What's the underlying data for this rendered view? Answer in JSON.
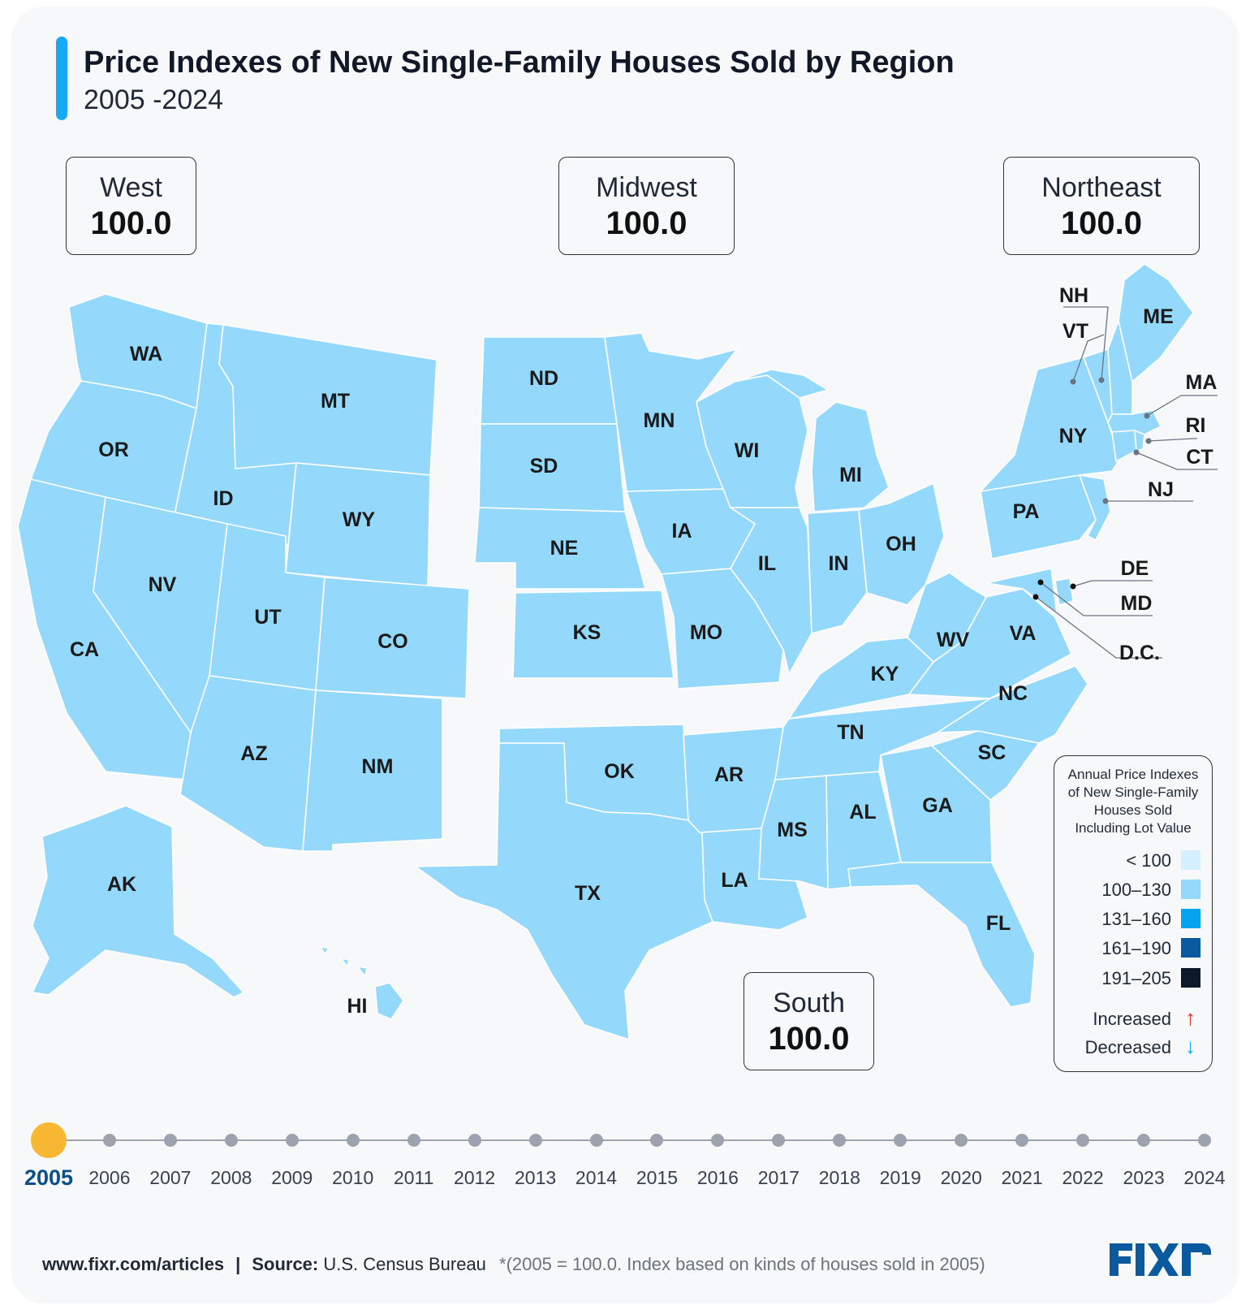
{
  "header": {
    "title": "Price Indexes of New Single-Family Houses Sold by Region",
    "subtitle": "2005 -2024"
  },
  "regions": {
    "west": {
      "name": "West",
      "value": "100.0"
    },
    "midwest": {
      "name": "Midwest",
      "value": "100.0"
    },
    "northeast": {
      "name": "Northeast",
      "value": "100.0"
    },
    "south": {
      "name": "South",
      "value": "100.0"
    }
  },
  "map": {
    "fill_color": "#94d9fc",
    "states": [
      "WA",
      "OR",
      "CA",
      "ID",
      "NV",
      "MT",
      "WY",
      "UT",
      "AZ",
      "CO",
      "NM",
      "AK",
      "HI",
      "ND",
      "SD",
      "NE",
      "KS",
      "MN",
      "IA",
      "MO",
      "WI",
      "IL",
      "MI",
      "IN",
      "OH",
      "OK",
      "TX",
      "AR",
      "LA",
      "MS",
      "AL",
      "TN",
      "KY",
      "GA",
      "FL",
      "SC",
      "NC",
      "VA",
      "WV",
      "NY",
      "PA",
      "ME",
      "NH",
      "VT",
      "MA",
      "RI",
      "CT",
      "NJ",
      "DE",
      "MD",
      "D.C."
    ]
  },
  "legend": {
    "title_lines": [
      "Annual Price Indexes",
      "of New Single-Family",
      "Houses Sold",
      "Including Lot Value"
    ],
    "items": [
      {
        "label": "< 100",
        "color": "#d4f0fe"
      },
      {
        "label": "100–130",
        "color": "#94d9fc"
      },
      {
        "label": "131–160",
        "color": "#07a2f0"
      },
      {
        "label": "161–190",
        "color": "#0b5aa0"
      },
      {
        "label": "191–205",
        "color": "#0c1929"
      }
    ],
    "increased": {
      "label": "Increased",
      "arrow": "↑",
      "color": "#d9321f"
    },
    "decreased": {
      "label": "Decreased",
      "arrow": "↓",
      "color": "#18a9f5"
    }
  },
  "timeline": {
    "active_year": "2005",
    "years": [
      "2005",
      "2006",
      "2007",
      "2008",
      "2009",
      "2010",
      "2011",
      "2012",
      "2013",
      "2014",
      "2015",
      "2016",
      "2017",
      "2018",
      "2019",
      "2020",
      "2021",
      "2022",
      "2023",
      "2024"
    ]
  },
  "footer": {
    "url": "www.fixr.com/articles",
    "separator": "|",
    "source_label": "Source:",
    "source": "U.S. Census Bureau",
    "note": "*(2005 = 100.0.  Index based on kinds of houses sold in 2005)"
  },
  "logo": {
    "text": "FIXR",
    "color": "#0b5aa0"
  }
}
